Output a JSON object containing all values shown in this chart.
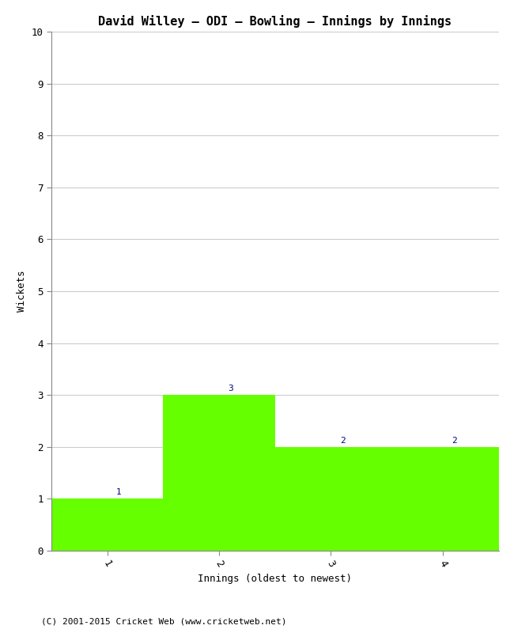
{
  "title": "David Willey – ODI – Bowling – Innings by Innings",
  "categories": [
    1,
    2,
    3,
    4
  ],
  "values": [
    1,
    3,
    2,
    2
  ],
  "bar_color": "#66ff00",
  "xlabel": "Innings (oldest to newest)",
  "ylabel": "Wickets",
  "ylim": [
    0,
    10
  ],
  "yticks": [
    0,
    1,
    2,
    3,
    4,
    5,
    6,
    7,
    8,
    9,
    10
  ],
  "xticks": [
    1,
    2,
    3,
    4
  ],
  "title_fontsize": 11,
  "axis_label_fontsize": 9,
  "tick_fontsize": 9,
  "annotation_fontsize": 8,
  "annotation_color": "#000080",
  "background_color": "#ffffff",
  "grid_color": "#cccccc",
  "footer_text": "(C) 2001-2015 Cricket Web (www.cricketweb.net)",
  "footer_fontsize": 8,
  "font_family": "monospace"
}
